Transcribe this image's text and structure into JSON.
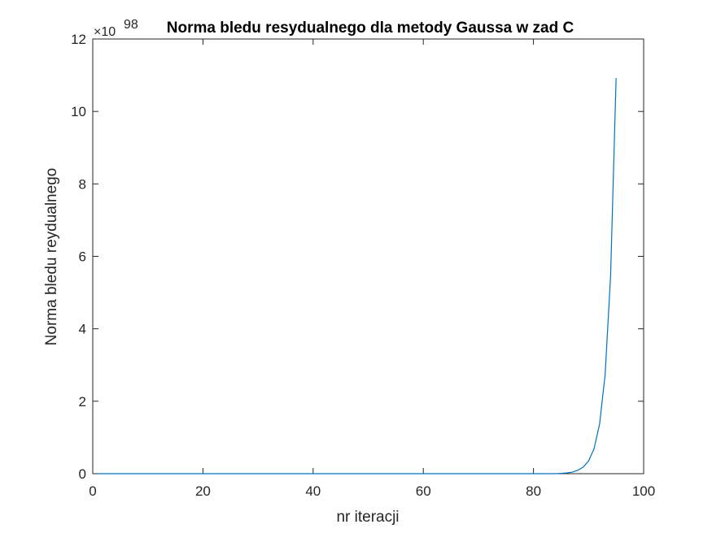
{
  "chart_data": {
    "type": "line",
    "title": "Norma bledu resydualnego dla metody Gaussa w zad C",
    "xlabel": "nr iteracji",
    "ylabel": "Norma bledu reydualnego",
    "xlim": [
      0,
      100
    ],
    "ylim": [
      0,
      12
    ],
    "y_multiplier": "×10",
    "y_exponent": "98",
    "xticks": [
      0,
      20,
      40,
      60,
      80,
      100
    ],
    "yticks": [
      0,
      2,
      4,
      6,
      8,
      10,
      12
    ],
    "grid": false,
    "line_color": "#0072BD",
    "series": [
      {
        "x": [
          1,
          10,
          20,
          30,
          40,
          50,
          60,
          70,
          80,
          84,
          85,
          86,
          87,
          88,
          89,
          90,
          91,
          92,
          93,
          94,
          95
        ],
        "y": [
          0,
          0,
          0,
          0,
          0,
          0,
          0,
          0,
          0,
          0.0,
          0.01,
          0.02,
          0.04,
          0.09,
          0.18,
          0.35,
          0.69,
          1.37,
          2.72,
          5.46,
          10.92
        ]
      }
    ]
  }
}
